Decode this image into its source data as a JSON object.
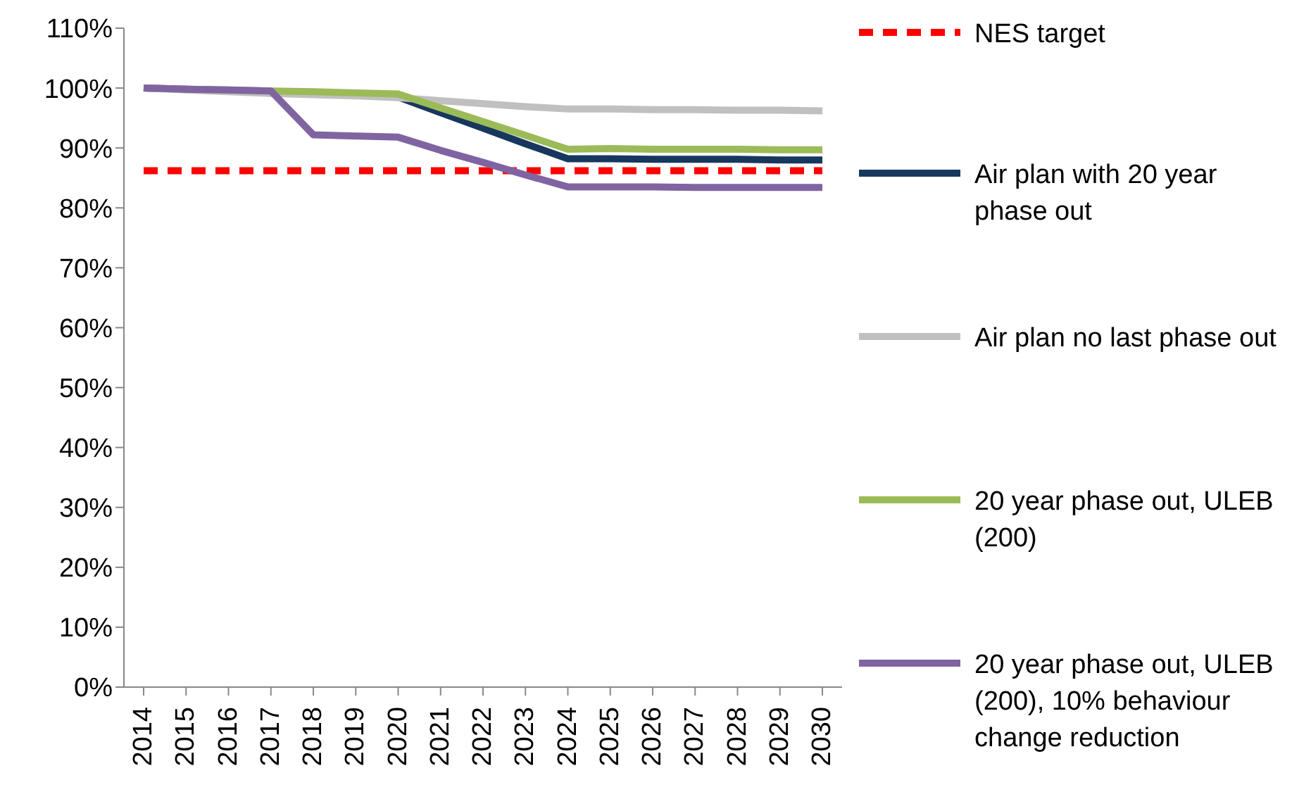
{
  "chart_data": {
    "type": "line",
    "categories": [
      "2014",
      "2015",
      "2016",
      "2017",
      "2018",
      "2019",
      "2020",
      "2021",
      "2022",
      "2023",
      "2024",
      "2025",
      "2026",
      "2027",
      "2028",
      "2029",
      "2030"
    ],
    "ylim": [
      0,
      110
    ],
    "yticks": [
      {
        "value": 0,
        "label": "0%"
      },
      {
        "value": 10,
        "label": "10%"
      },
      {
        "value": 20,
        "label": "20%"
      },
      {
        "value": 30,
        "label": "30%"
      },
      {
        "value": 40,
        "label": "40%"
      },
      {
        "value": 50,
        "label": "50%"
      },
      {
        "value": 60,
        "label": "60%"
      },
      {
        "value": 70,
        "label": "70%"
      },
      {
        "value": 80,
        "label": "80%"
      },
      {
        "value": 90,
        "label": "90%"
      },
      {
        "value": 100,
        "label": "100%"
      },
      {
        "value": 110,
        "label": "110%"
      }
    ],
    "legend": "right",
    "marker": "none",
    "line_style": "solid",
    "series": [
      {
        "name": "NES target",
        "color": "#ff0000",
        "line_style": "dashed",
        "values": [
          86.2,
          86.2,
          86.2,
          86.2,
          86.2,
          86.2,
          86.2,
          86.2,
          86.2,
          86.2,
          86.2,
          86.2,
          86.2,
          86.2,
          86.2,
          86.2,
          86.2
        ]
      },
      {
        "name": "Air plan with 20 year phase out",
        "color": "#17375e",
        "values": [
          100,
          99.8,
          99.6,
          99.4,
          null,
          null,
          98.5,
          95.9,
          93.3,
          90.7,
          88.2,
          88.2,
          88.1,
          88.1,
          88.1,
          88.0,
          88.0
        ]
      },
      {
        "name": "Air plan no last phase out",
        "color": "#c0c0c0",
        "values": [
          100,
          99.7,
          99.4,
          99.1,
          98.9,
          98.7,
          98.4,
          97.9,
          97.4,
          96.9,
          96.5,
          96.5,
          96.4,
          96.4,
          96.3,
          96.3,
          96.2
        ]
      },
      {
        "name": "20 year phase out, ULEB (200)",
        "color": "#9bbb59",
        "values": [
          100,
          99.8,
          99.7,
          99.5,
          99.4,
          99.2,
          99.0,
          96.7,
          94.4,
          92.1,
          89.8,
          89.9,
          89.8,
          89.8,
          89.8,
          89.7,
          89.7
        ]
      },
      {
        "name": "20 year phase out, ULEB (200), 10% behaviour change reduction",
        "color": "#8064a2",
        "values": [
          100,
          99.8,
          99.7,
          99.5,
          92.2,
          92.0,
          91.8,
          89.6,
          87.6,
          85.5,
          83.5,
          83.5,
          83.5,
          83.4,
          83.4,
          83.4,
          83.4
        ]
      }
    ]
  }
}
